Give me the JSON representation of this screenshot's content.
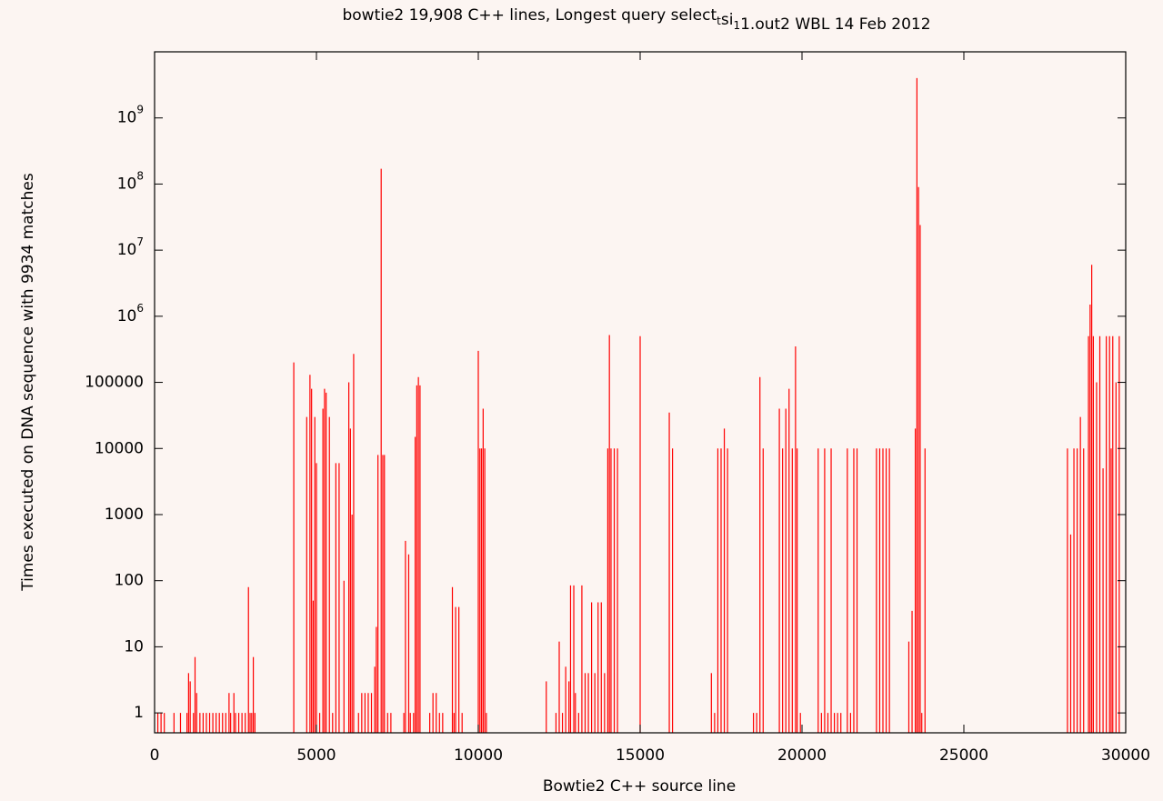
{
  "chart_data": {
    "type": "impulse",
    "title": "bowtie2 19,908 C++ lines, Longest query select_tsi_11.out2 WBL 14 Feb 2012",
    "x_label": "Bowtie2 C++ source line",
    "y_label": "Times executed on DNA sequence with 9934 matches",
    "color": "#ff0000",
    "log_y": true,
    "xlim": [
      0,
      30000
    ],
    "ylim": [
      0.5,
      10000000000
    ],
    "xticks": [
      0,
      5000,
      10000,
      15000,
      20000,
      25000,
      30000
    ],
    "yticks": [
      1,
      10,
      100,
      1000,
      10000,
      100000,
      {
        "value": 1000000,
        "label": "10^6"
      },
      {
        "value": 10000000,
        "label": "10^7"
      },
      {
        "value": 100000000,
        "label": "10^8"
      },
      {
        "value": 1000000000,
        "label": "10^9"
      }
    ],
    "x": [
      100,
      200,
      300,
      600,
      800,
      1000,
      1050,
      1100,
      1200,
      1250,
      1300,
      1400,
      1500,
      1600,
      1700,
      1800,
      1900,
      2000,
      2100,
      2200,
      2300,
      2350,
      2450,
      2500,
      2600,
      2700,
      2800,
      2900,
      2950,
      3000,
      3050,
      3100,
      4300,
      4700,
      4800,
      4850,
      4900,
      4950,
      5000,
      5100,
      5200,
      5250,
      5300,
      5400,
      5500,
      5600,
      5700,
      5850,
      6000,
      6050,
      6100,
      6150,
      6300,
      6400,
      6500,
      6600,
      6700,
      6800,
      6850,
      6900,
      7000,
      7050,
      7100,
      7200,
      7300,
      7700,
      7750,
      7850,
      7900,
      8000,
      8050,
      8100,
      8150,
      8200,
      8500,
      8600,
      8700,
      8800,
      8900,
      9200,
      9250,
      9300,
      9400,
      9500,
      10000,
      10050,
      10100,
      10150,
      10200,
      10250,
      12100,
      12400,
      12500,
      12600,
      12700,
      12800,
      12850,
      12950,
      13000,
      13100,
      13200,
      13300,
      13400,
      13500,
      13600,
      13700,
      13800,
      13900,
      14000,
      14050,
      14100,
      14200,
      14300,
      15000,
      15900,
      16000,
      17200,
      17300,
      17400,
      17500,
      17600,
      17700,
      18500,
      18600,
      18700,
      18800,
      19300,
      19400,
      19500,
      19600,
      19700,
      19800,
      19850,
      19950,
      20500,
      20600,
      20700,
      20800,
      20900,
      21000,
      21100,
      21200,
      21400,
      21500,
      21600,
      21700,
      22300,
      22400,
      22500,
      22600,
      22700,
      23300,
      23400,
      23500,
      23550,
      23600,
      23650,
      23700,
      23800,
      28200,
      28300,
      28400,
      28500,
      28600,
      28700,
      28850,
      28900,
      28950,
      29000,
      29100,
      29200,
      29300,
      29400,
      29500,
      29550,
      29600,
      29700,
      29800
    ],
    "values": [
      1,
      1,
      1,
      1,
      1,
      1,
      4,
      3,
      1,
      7,
      2,
      1,
      1,
      1,
      1,
      1,
      1,
      1,
      1,
      1,
      2,
      1,
      2,
      1,
      1,
      1,
      1,
      80,
      1,
      1,
      7,
      1,
      200000,
      30000,
      130000,
      80000,
      50,
      30000,
      6000,
      1,
      40000,
      80000,
      70000,
      30000,
      1,
      6000,
      6000,
      100,
      100000,
      20000,
      1000,
      270000,
      1,
      2,
      2,
      2,
      2,
      5,
      20,
      8000,
      170000000,
      8000,
      8000,
      1,
      1,
      1,
      400,
      250,
      1,
      1,
      15000,
      90000,
      120000,
      90000,
      1,
      2,
      2,
      1,
      1,
      80,
      1,
      40,
      40,
      1,
      300000,
      10000,
      10000,
      40000,
      10000,
      1,
      3,
      1,
      12,
      1,
      5,
      3,
      85,
      85,
      2,
      1,
      85,
      4,
      4,
      47,
      4,
      47,
      47,
      4,
      10000,
      520000,
      10000,
      10000,
      10000,
      500000,
      35000,
      10000,
      4,
      1,
      10000,
      10000,
      20000,
      10000,
      1,
      1,
      120000,
      10000,
      40000,
      10000,
      40000,
      80000,
      10000,
      350000,
      10000,
      1,
      10000,
      1,
      10000,
      1,
      10000,
      1,
      1,
      1,
      10000,
      1,
      10000,
      10000,
      10000,
      10000,
      10000,
      10000,
      10000,
      12,
      35,
      20000,
      4000000000,
      90000000,
      24000000,
      1,
      10000,
      10000,
      500,
      10000,
      10000,
      30000,
      10000,
      500000,
      1500000,
      6000000,
      500000,
      100000,
      500000,
      5000,
      500000,
      500000,
      10000,
      500000,
      100000,
      500000
    ]
  }
}
